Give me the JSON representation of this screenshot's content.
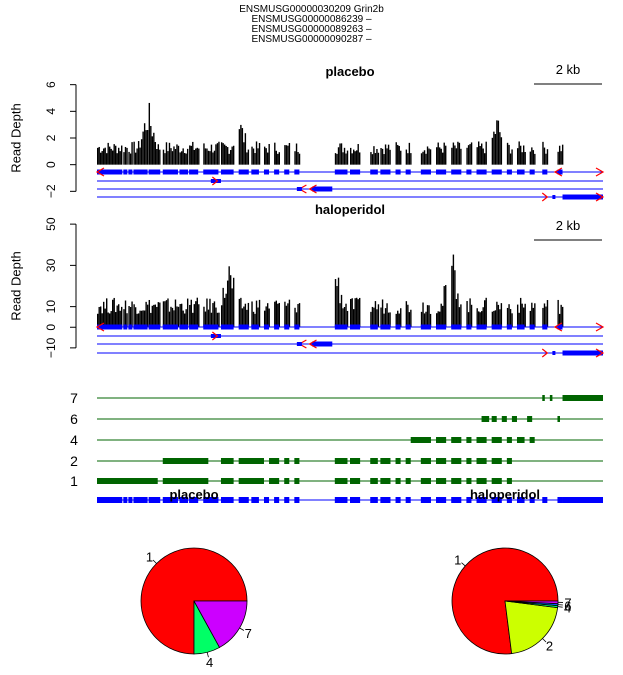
{
  "header_lines": [
    "ENSMUSG00000030209 Grin2b",
    "ENSMUSG00000086239 –",
    "ENSMUSG00000089263 –",
    "ENSMUSG00000090287 –"
  ],
  "colors": {
    "coverage": "#000000",
    "gene_model": "#0000ff",
    "isoform": "#006400",
    "arrow": "#ff0000"
  },
  "chart_data": [
    {
      "type": "area",
      "title": "placebo",
      "ylabel": "Read Depth",
      "yticks": [
        -2,
        0,
        2,
        4,
        6
      ],
      "ylim": [
        -2.5,
        6.2
      ],
      "scale_bar_label": "2 kb",
      "peak_depth": 5,
      "notable_peaks": [
        {
          "x": 0.1,
          "y": 5
        },
        {
          "x": 0.28,
          "y": 4
        },
        {
          "x": 0.79,
          "y": 4
        },
        {
          "x": 0.98,
          "y": 3
        }
      ]
    },
    {
      "type": "area",
      "title": "haloperidol",
      "ylabel": "Read Depth",
      "yticks": [
        -10,
        0,
        10,
        30,
        50
      ],
      "ylim": [
        -12,
        52
      ],
      "scale_bar_label": "2 kb",
      "peak_depth": 41,
      "notable_peaks": [
        {
          "x": 0.26,
          "y": 34
        },
        {
          "x": 0.47,
          "y": 34
        },
        {
          "x": 0.7,
          "y": 41
        },
        {
          "x": 0.99,
          "y": 2
        }
      ]
    },
    {
      "type": "table",
      "title": "",
      "isoform_labels": [
        "7",
        "6",
        "4",
        "2",
        "1"
      ]
    },
    {
      "type": "pie",
      "title": "placebo",
      "slices": [
        {
          "label": "1",
          "value": 75
        },
        {
          "label": "4",
          "value": 8
        },
        {
          "label": "7",
          "value": 17
        }
      ]
    },
    {
      "type": "pie",
      "title": "haloperidol",
      "slices": [
        {
          "label": "1",
          "value": 77
        },
        {
          "label": "2",
          "value": 21
        },
        {
          "label": "4",
          "value": 0.6
        },
        {
          "label": "6",
          "value": 0.6
        },
        {
          "label": "7",
          "value": 0.8
        }
      ]
    }
  ]
}
